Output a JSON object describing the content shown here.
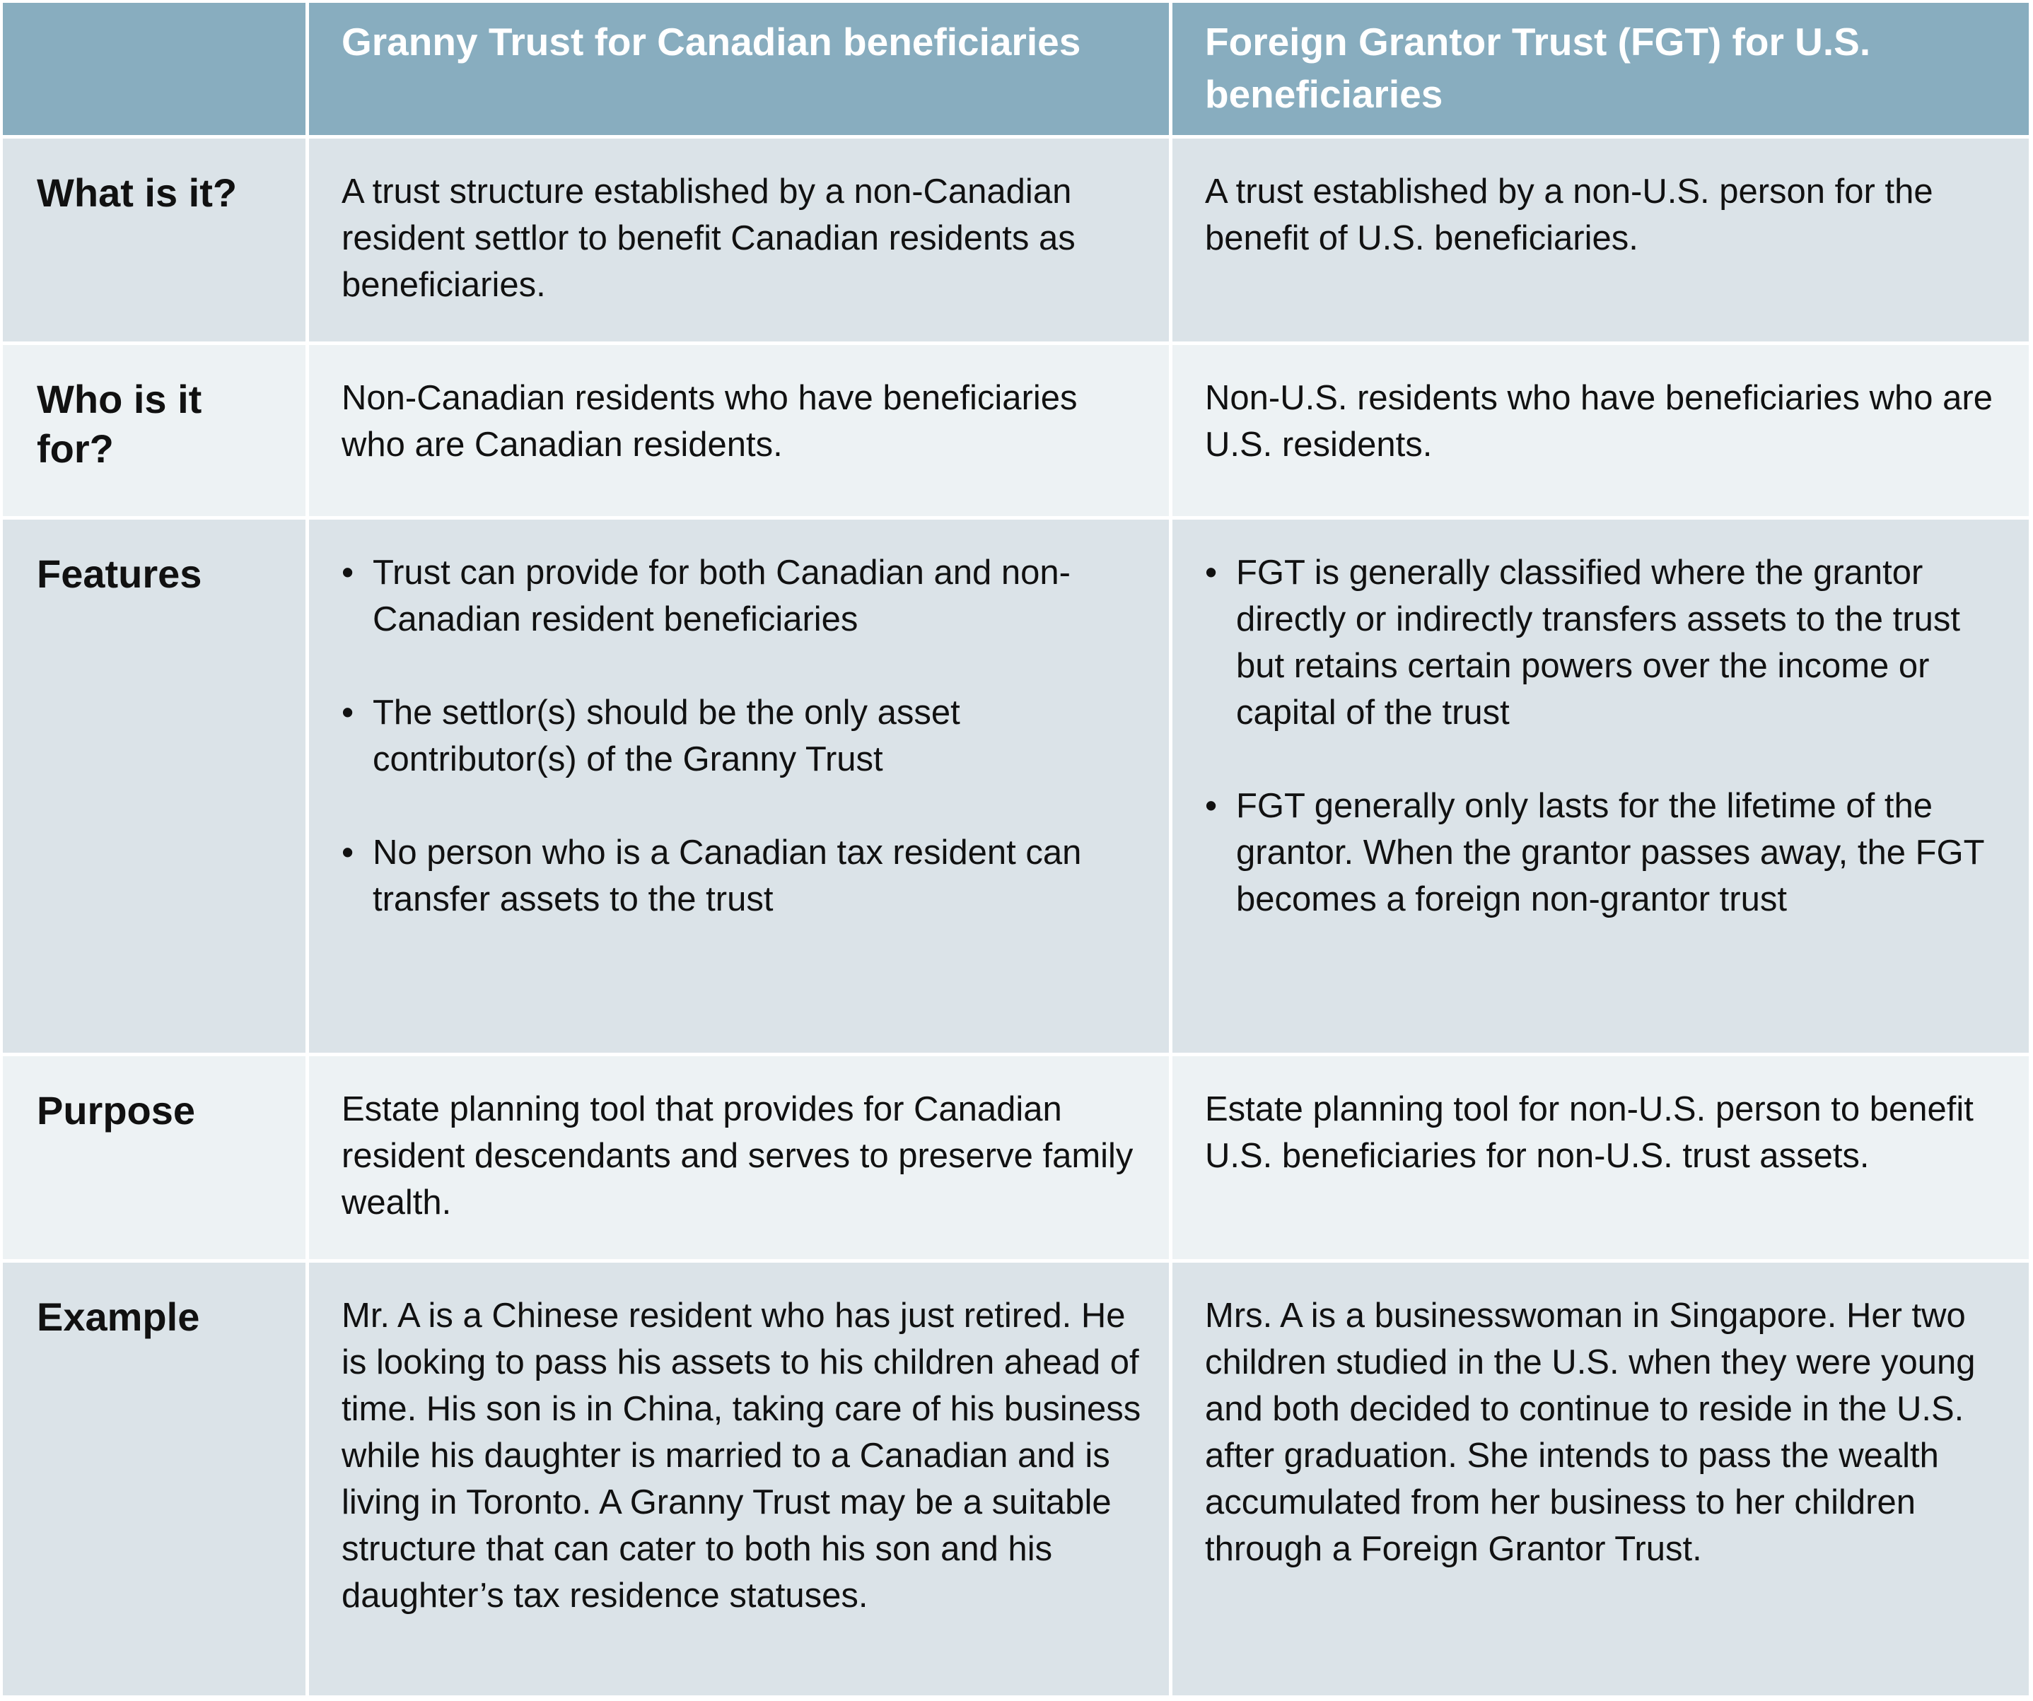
{
  "colors": {
    "header": "#88adbf",
    "row_dark": "#dbe3e8",
    "row_light": "#edf2f4"
  },
  "header": {
    "col0": "",
    "col1": "Granny Trust for Canadian beneficiaries",
    "col2": "Foreign Grantor Trust (FGT) for U.S. beneficiaries"
  },
  "rows": [
    {
      "label": "What is it?",
      "granny": "A trust structure established by a non-Canadian resident settlor to benefit Canadian residents as beneficiaries.",
      "fgt": "A trust established by a non-U.S. person for the benefit of U.S. beneficiaries."
    },
    {
      "label": "Who is it for?",
      "granny": "Non-Canadian residents who have beneficiaries who are Canadian residents.",
      "fgt": "Non-U.S. residents who have beneficiaries who are U.S. residents."
    },
    {
      "label": "Features",
      "bullet": "•",
      "granny": [
        "Trust can provide for both Canadian and non-Canadian resident beneficiaries",
        "The settlor(s) should be the only asset contributor(s) of the Granny Trust",
        "No person who is a Canadian tax resident can transfer assets to the trust"
      ],
      "fgt": [
        "FGT is generally classified where the grantor directly or indirectly transfers assets to the trust but retains certain powers over the income or capital of the trust",
        "FGT generally only lasts for the lifetime of the grantor. When the grantor passes away, the FGT becomes a foreign non-grantor trust"
      ]
    },
    {
      "label": "Purpose",
      "granny": "Estate planning tool that provides for Canadian resident descendants and serves to preserve family wealth.",
      "fgt": "Estate planning tool for non-U.S. person to benefit U.S. beneficiaries for non-U.S. trust assets."
    },
    {
      "label": "Example",
      "granny": "Mr. A is a Chinese resident who has just retired. He is looking to pass his assets to his children ahead of time. His son is in China, taking care of his business while his daughter is married to a Canadian and is living in Toronto. A Granny Trust may be a suitable structure that can cater to both his son and his daughter’s tax residence statuses.",
      "fgt": "Mrs. A is a businesswoman in Singapore. Her two children studied in the U.S. when they were young and both decided to continue to reside in the U.S. after graduation. She intends to pass the wealth accumulated from her business to her children through a Foreign Grantor Trust."
    }
  ]
}
